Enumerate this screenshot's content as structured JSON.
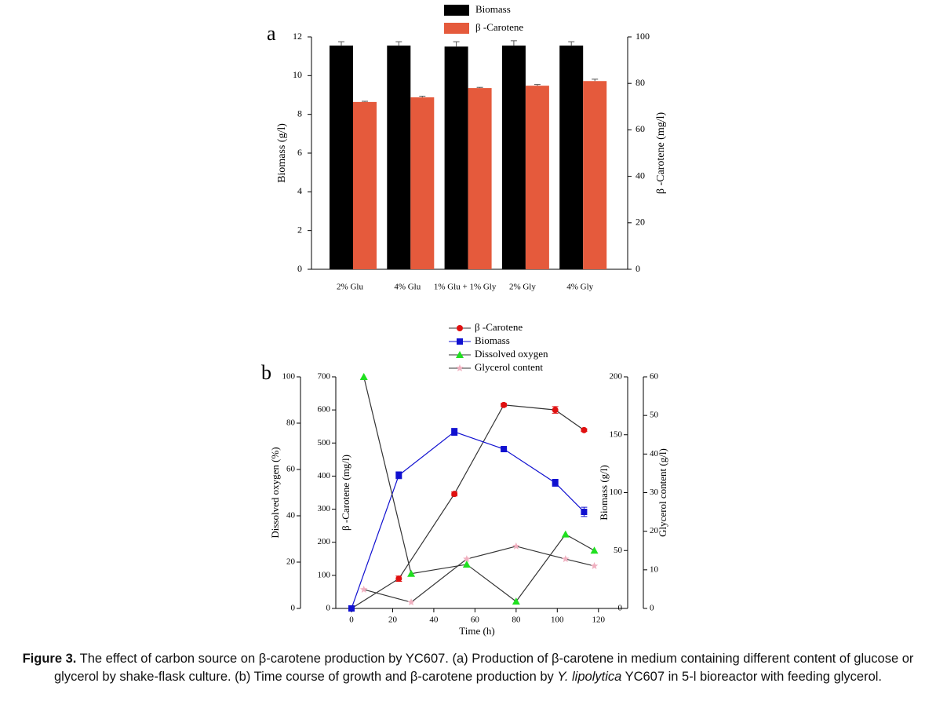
{
  "chart_data": [
    {
      "type": "bar",
      "panel": "a",
      "categories": [
        "2% Glu",
        "4% Glu",
        "1% Glu + 1% Gly",
        "2% Gly",
        "4% Gly"
      ],
      "series": [
        {
          "name": "Biomass",
          "color": "#000000",
          "axis": "y",
          "values": [
            11.55,
            11.55,
            11.5,
            11.55,
            11.55
          ],
          "errors": [
            0.2,
            0.2,
            0.25,
            0.25,
            0.2
          ]
        },
        {
          "name": "β -Carotene",
          "color": "#e55a3c",
          "axis": "y2",
          "values": [
            72,
            74,
            78,
            79,
            81
          ],
          "errors": [
            0.3,
            0.5,
            0.3,
            0.5,
            0.8
          ]
        }
      ],
      "ylabel": "Biomass (g/l)",
      "ylim": [
        0,
        12
      ],
      "yticks": [
        0,
        2,
        4,
        6,
        8,
        10,
        12
      ],
      "y2label": "β -Carotene (mg/l)",
      "y2lim": [
        0,
        100
      ],
      "y2ticks": [
        0,
        20,
        40,
        60,
        80,
        100
      ]
    },
    {
      "type": "line",
      "panel": "b",
      "xlabel": "Time (h)",
      "xlim": [
        -8,
        130
      ],
      "xticks": [
        0,
        20,
        40,
        60,
        80,
        100,
        120
      ],
      "series": [
        {
          "name": "β -Carotene",
          "color": "#e01010",
          "line_color": "#333333",
          "marker": "circle",
          "axis": "y",
          "x": [
            0,
            23,
            50,
            74,
            99,
            113
          ],
          "values": [
            0,
            90,
            346,
            615,
            600,
            539
          ],
          "errors": [
            0,
            8,
            6,
            5,
            10,
            4
          ]
        },
        {
          "name": "Biomass",
          "color": "#1010d0",
          "line_color": "#1010d0",
          "marker": "square",
          "axis": "y2",
          "x": [
            0,
            23,
            50,
            74,
            99,
            113
          ],
          "values": [
            0,
            115,
            152.5,
            137.6,
            108.5,
            83.4
          ],
          "errors": [
            0,
            3,
            3,
            0,
            3,
            4
          ]
        },
        {
          "name": "Dissolved oxygen",
          "color": "#20e020",
          "line_color": "#333333",
          "marker": "triangle",
          "axis": "y3",
          "x": [
            6,
            29,
            56,
            80,
            104,
            118
          ],
          "values": [
            100,
            15,
            19,
            3,
            32,
            25
          ]
        },
        {
          "name": "Glycerol content",
          "color": "#f0b0c0",
          "line_color": "#333333",
          "marker": "star",
          "axis": "y4",
          "x": [
            6,
            29,
            56,
            80,
            104,
            118
          ],
          "values": [
            4.9,
            1.6,
            12.8,
            16.1,
            12.8,
            11
          ]
        }
      ],
      "ylabel": "β -Carotene (mg/l)",
      "ylim": [
        0,
        700
      ],
      "yticks": [
        0,
        100,
        200,
        300,
        400,
        500,
        600,
        700
      ],
      "y2label": "Biomass (g/l)",
      "y2lim": [
        0,
        200
      ],
      "y2ticks": [
        0,
        50,
        100,
        150,
        200
      ],
      "y3label": "Dissolved oxygen (%)",
      "y3lim": [
        0,
        100
      ],
      "y3ticks": [
        0,
        20,
        40,
        60,
        80,
        100
      ],
      "y4label": "Glycerol content (g/l)",
      "y4lim": [
        0,
        60
      ],
      "y4ticks": [
        0,
        10,
        20,
        30,
        40,
        50,
        60
      ]
    }
  ],
  "caption": {
    "label": "Figure 3.",
    "text": " The effect of carbon source on β-carotene production by YC607. (a) Production of β-carotene in medium containing different content of glucose or glycerol by shake-flask culture. (b) Time course of growth and β-carotene production by ",
    "species": "Y. lipolytica",
    "tail": " YC607 in 5-l bioreactor with feeding glycerol."
  }
}
